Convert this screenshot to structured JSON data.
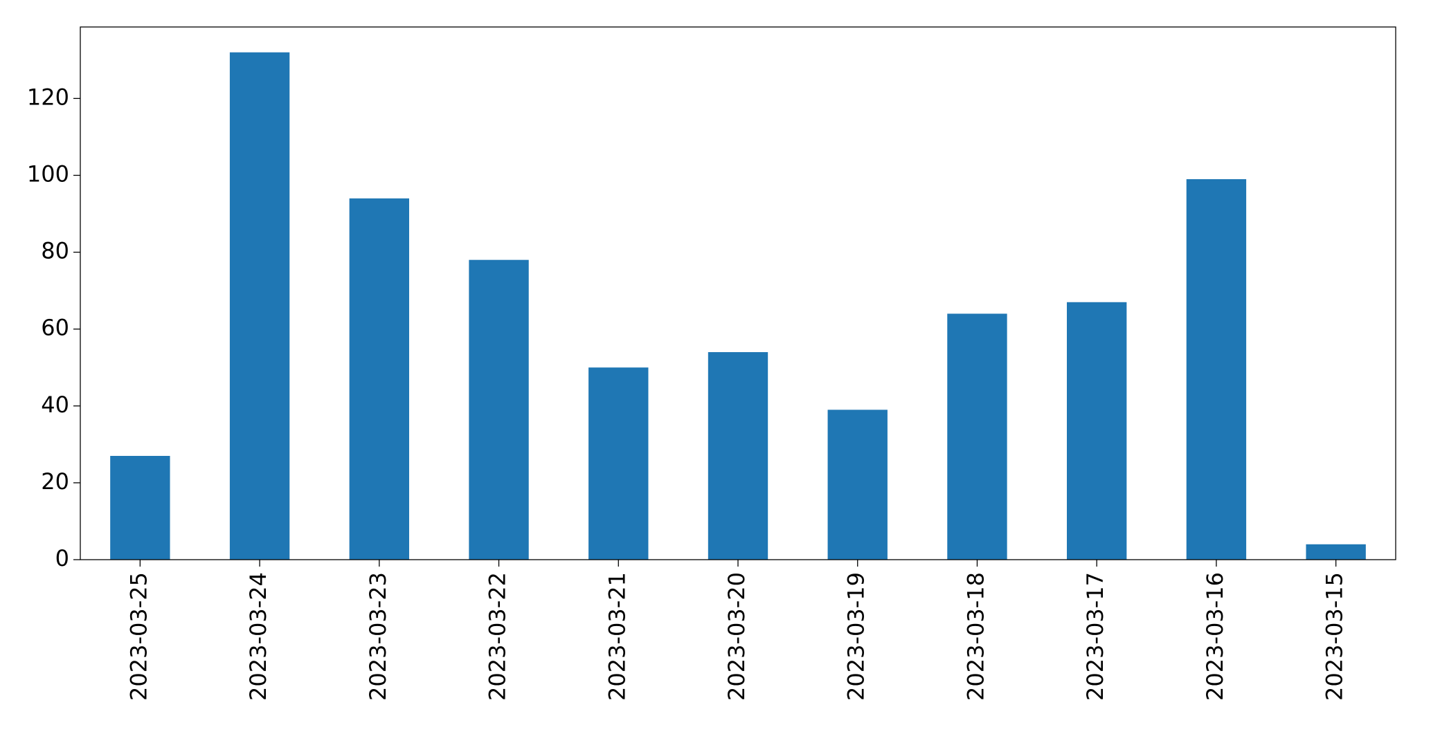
{
  "chart_data": {
    "type": "bar",
    "categories": [
      "2023-03-25",
      "2023-03-24",
      "2023-03-23",
      "2023-03-22",
      "2023-03-21",
      "2023-03-20",
      "2023-03-19",
      "2023-03-18",
      "2023-03-17",
      "2023-03-16",
      "2023-03-15"
    ],
    "values": [
      27,
      132,
      94,
      78,
      50,
      54,
      39,
      64,
      67,
      99,
      4
    ],
    "color": "#1f77b4",
    "ylim": [
      0,
      138.6
    ],
    "yticks": [
      0,
      20,
      40,
      60,
      80,
      100,
      120
    ],
    "grid": false
  }
}
